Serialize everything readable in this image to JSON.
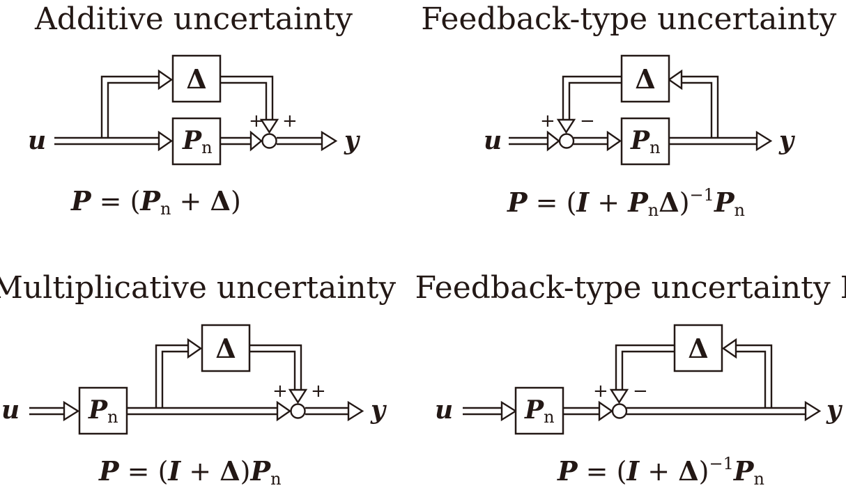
{
  "panels": [
    {
      "title": "Additive uncertainty",
      "input": "u",
      "output": "y",
      "block_delta": "Δ",
      "block_plant": "P",
      "plant_sub": "n",
      "sign_left": "+",
      "sign_right": "+",
      "formula": "P = (Pn + Δ)"
    },
    {
      "title": "Feedback-type uncertainty I",
      "input": "u",
      "output": "y",
      "block_delta": "Δ",
      "block_plant": "P",
      "plant_sub": "n",
      "sign_left": "+",
      "sign_right": "−",
      "formula": "P = (I + PnΔ)−1Pn"
    },
    {
      "title": "Multiplicative uncertainty",
      "input": "u",
      "output": "y",
      "block_delta": "Δ",
      "block_plant": "P",
      "plant_sub": "n",
      "sign_left": "+",
      "sign_right": "+",
      "formula": "P = (I + Δ)Pn"
    },
    {
      "title": "Feedback-type uncertainty II",
      "input": "u",
      "output": "y",
      "block_delta": "Δ",
      "block_plant": "P",
      "plant_sub": "n",
      "sign_left": "+",
      "sign_right": "−",
      "formula": "P = (I + Δ)−1Pn"
    }
  ]
}
